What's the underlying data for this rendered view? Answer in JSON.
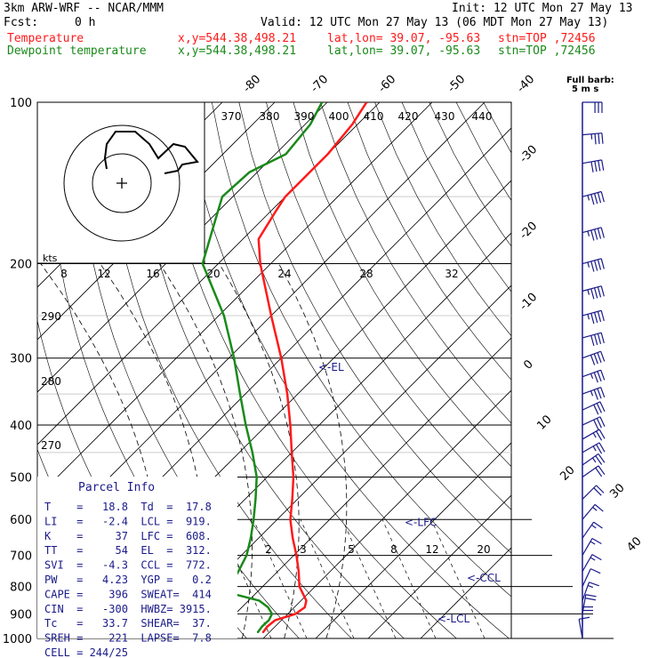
{
  "header": {
    "model": "3km ARW-WRF -- NCAR/MMM",
    "init": "Init: 12 UTC Mon 27 May 13",
    "fcst_label": "Fcst:",
    "fcst_value": "0 h",
    "valid": "Valid: 12 UTC Mon 27 May 13 (06 MDT Mon 27 May 13)",
    "temp_label": "Temperature",
    "dew_label": "Dewpoint temperature",
    "xy": "x,y=544.38,498.21",
    "latlon": "lat,lon= 39.07, -95.63",
    "stn": "stn=TOP ,72456"
  },
  "colors": {
    "temperature": "#ff1a1a",
    "dewpoint": "#1a8a1a",
    "panel": "#1a1a8a",
    "axes": "#000000"
  },
  "chart_data": {
    "type": "line",
    "chart_kind": "skew-T log-P",
    "y_axis": {
      "scale": "log",
      "ylim": [
        1000,
        100
      ],
      "ticks": [
        100,
        200,
        300,
        400,
        500,
        600,
        700,
        800,
        900,
        1000
      ]
    },
    "isotherm_labels": [
      "-80",
      "-70",
      "-60",
      "-50",
      "-40",
      "-30",
      "-20",
      "-10",
      "0",
      "10",
      "20",
      "30",
      "40"
    ],
    "theta_labels": [
      "370",
      "380",
      "390",
      "400",
      "410",
      "420",
      "430",
      "440"
    ],
    "hodo_labels": [
      "8",
      "12",
      "16",
      "20",
      "24",
      "28",
      "32"
    ],
    "hodo_unit": "kts",
    "left_labels": [
      {
        "text": "290",
        "p": 350
      },
      {
        "text": "280",
        "p": 305
      },
      {
        "text": "270",
        "p": 455
      }
    ],
    "mixing_labels": [
      "2",
      "3",
      "5",
      "8",
      "12",
      "20"
    ],
    "annotations": [
      {
        "text": "<-EL",
        "p": 312
      },
      {
        "text": "<-LFC",
        "p": 608
      },
      {
        "text": "<-CCL",
        "p": 772
      },
      {
        "text": "<-LCL",
        "p": 919
      }
    ],
    "series": [
      {
        "name": "Temperature",
        "points": [
          {
            "p": 975,
            "t": 18.8
          },
          {
            "p": 950,
            "t": 18.5
          },
          {
            "p": 925,
            "t": 18.8
          },
          {
            "p": 900,
            "t": 21.5
          },
          {
            "p": 875,
            "t": 22.0
          },
          {
            "p": 850,
            "t": 21.0
          },
          {
            "p": 800,
            "t": 17.0
          },
          {
            "p": 750,
            "t": 14.0
          },
          {
            "p": 700,
            "t": 10.5
          },
          {
            "p": 650,
            "t": 6.5
          },
          {
            "p": 600,
            "t": 2.5
          },
          {
            "p": 550,
            "t": -1.0
          },
          {
            "p": 500,
            "t": -5.0
          },
          {
            "p": 450,
            "t": -10.0
          },
          {
            "p": 400,
            "t": -15.5
          },
          {
            "p": 350,
            "t": -22.0
          },
          {
            "p": 300,
            "t": -30.0
          },
          {
            "p": 250,
            "t": -40.0
          },
          {
            "p": 200,
            "t": -52.0
          },
          {
            "p": 180,
            "t": -57.0
          },
          {
            "p": 160,
            "t": -59.0
          },
          {
            "p": 150,
            "t": -60.0
          },
          {
            "p": 140,
            "t": -60.0
          },
          {
            "p": 125,
            "t": -60.0
          },
          {
            "p": 110,
            "t": -61.0
          },
          {
            "p": 100,
            "t": -62.5
          }
        ]
      },
      {
        "name": "Dewpoint temperature",
        "points": [
          {
            "p": 975,
            "t": 17.8
          },
          {
            "p": 950,
            "t": 17.5
          },
          {
            "p": 925,
            "t": 17.6
          },
          {
            "p": 900,
            "t": 17.0
          },
          {
            "p": 875,
            "t": 15.0
          },
          {
            "p": 850,
            "t": 12.0
          },
          {
            "p": 825,
            "t": 5.5
          },
          {
            "p": 800,
            "t": 3.5
          },
          {
            "p": 750,
            "t": 2.5
          },
          {
            "p": 700,
            "t": 1.0
          },
          {
            "p": 650,
            "t": -1.5
          },
          {
            "p": 600,
            "t": -4.5
          },
          {
            "p": 550,
            "t": -8.0
          },
          {
            "p": 500,
            "t": -12.0
          },
          {
            "p": 450,
            "t": -17.5
          },
          {
            "p": 400,
            "t": -24.0
          },
          {
            "p": 350,
            "t": -31.0
          },
          {
            "p": 300,
            "t": -39.0
          },
          {
            "p": 250,
            "t": -49.0
          },
          {
            "p": 200,
            "t": -63.0
          },
          {
            "p": 160,
            "t": -70.0
          },
          {
            "p": 150,
            "t": -72.0
          },
          {
            "p": 135,
            "t": -71.5
          },
          {
            "p": 125,
            "t": -68.0
          },
          {
            "p": 110,
            "t": -69.0
          },
          {
            "p": 100,
            "t": -71.0
          }
        ]
      }
    ],
    "wind_barbs": [
      {
        "p": 100,
        "dir": 270,
        "spd": 30
      },
      {
        "p": 115,
        "dir": 265,
        "spd": 35
      },
      {
        "p": 130,
        "dir": 260,
        "spd": 40
      },
      {
        "p": 150,
        "dir": 255,
        "spd": 45
      },
      {
        "p": 175,
        "dir": 255,
        "spd": 45
      },
      {
        "p": 200,
        "dir": 255,
        "spd": 45
      },
      {
        "p": 225,
        "dir": 255,
        "spd": 45
      },
      {
        "p": 250,
        "dir": 255,
        "spd": 45
      },
      {
        "p": 275,
        "dir": 255,
        "spd": 40
      },
      {
        "p": 300,
        "dir": 250,
        "spd": 40
      },
      {
        "p": 325,
        "dir": 250,
        "spd": 35
      },
      {
        "p": 350,
        "dir": 250,
        "spd": 35
      },
      {
        "p": 375,
        "dir": 245,
        "spd": 30
      },
      {
        "p": 400,
        "dir": 245,
        "spd": 30
      },
      {
        "p": 425,
        "dir": 240,
        "spd": 25
      },
      {
        "p": 450,
        "dir": 240,
        "spd": 25
      },
      {
        "p": 475,
        "dir": 235,
        "spd": 25
      },
      {
        "p": 500,
        "dir": 235,
        "spd": 20
      },
      {
        "p": 550,
        "dir": 225,
        "spd": 20
      },
      {
        "p": 600,
        "dir": 220,
        "spd": 15
      },
      {
        "p": 650,
        "dir": 215,
        "spd": 15
      },
      {
        "p": 700,
        "dir": 210,
        "spd": 15
      },
      {
        "p": 750,
        "dir": 210,
        "spd": 15
      },
      {
        "p": 800,
        "dir": 205,
        "spd": 10
      },
      {
        "p": 850,
        "dir": 200,
        "spd": 15
      },
      {
        "p": 900,
        "dir": 190,
        "spd": 20
      },
      {
        "p": 950,
        "dir": 180,
        "spd": 20
      },
      {
        "p": 1000,
        "dir": 170,
        "spd": 10
      }
    ],
    "barb_key": "Full barb:",
    "barb_key_value": "5 m s"
  },
  "parcel": {
    "title": "Parcel Info",
    "rows": [
      "T    =   18.8  Td  =  17.8",
      "LI   =   -2.4  LCL =  919.",
      "K    =     37  LFC =  608.",
      "TT   =     54  EL  =  312.",
      "SVI  =   -4.3  CCL =  772.",
      "PW   =   4.23  YGP =   0.2",
      "CAPE =    396  SWEAT=  414",
      "CIN  =   -300  HWBZ= 3915.",
      "Tc   =   33.7  SHEAR=  37.",
      "SREH =    221  LAPSE=  7.8",
      "CELL = 244/25"
    ]
  }
}
